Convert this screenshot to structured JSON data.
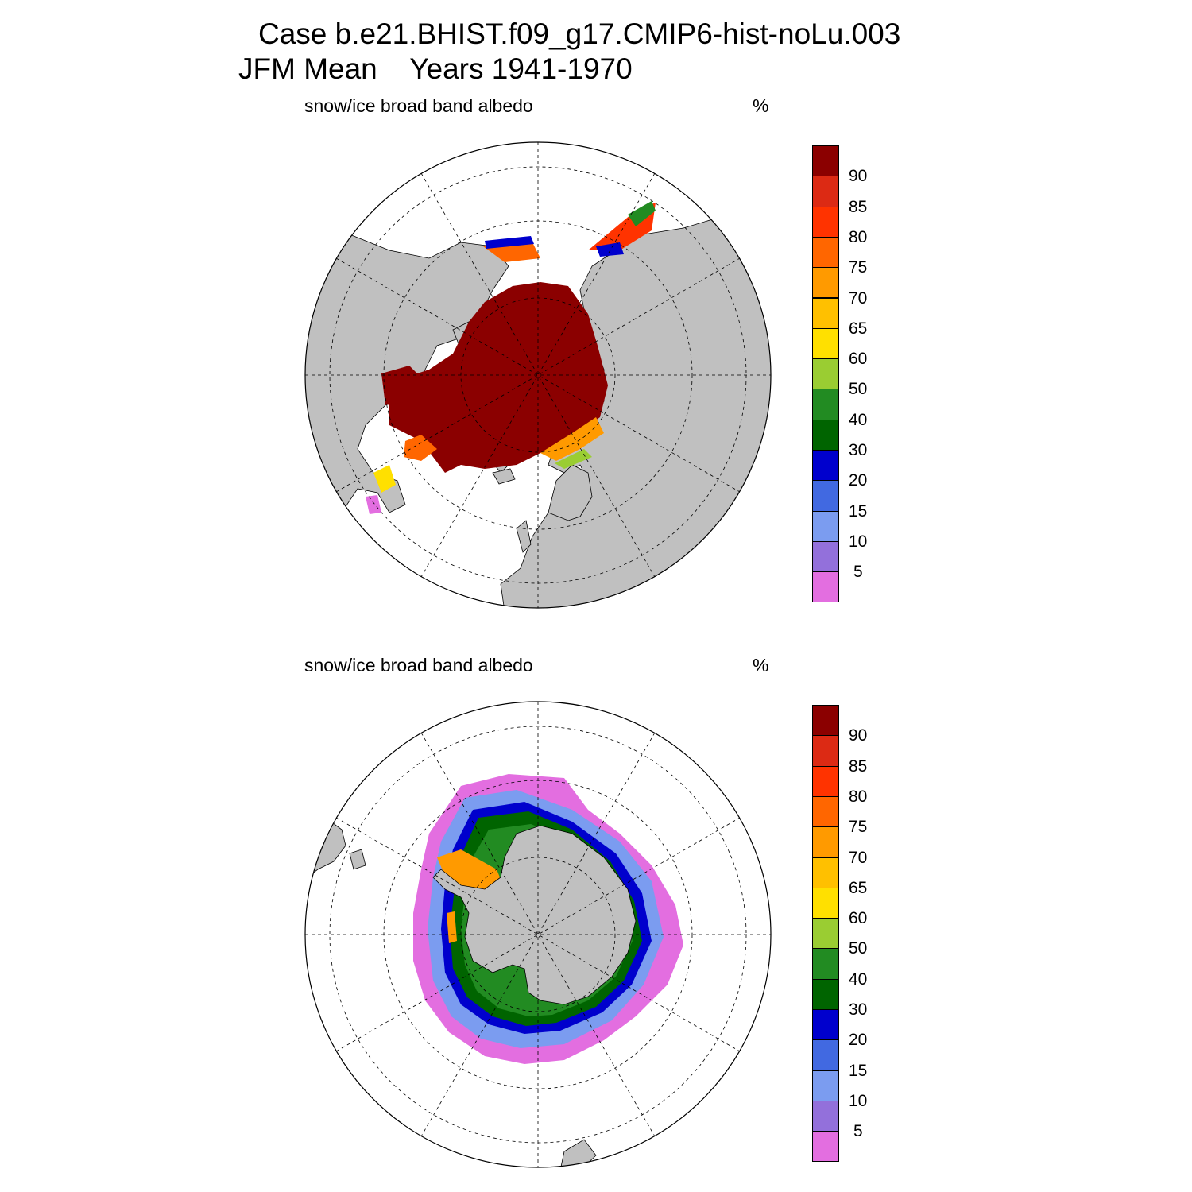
{
  "header": {
    "title_line1": "Case b.e21.BHIST.f09_g17.CMIP6-hist-noLu.003",
    "title_line2": "JFM Mean    Years 1941-1970"
  },
  "panels": [
    {
      "id": "north",
      "variable": "snow/ice broad band albedo",
      "units": "%",
      "hemisphere": "north"
    },
    {
      "id": "south",
      "variable": "snow/ice broad band albedo",
      "units": "%",
      "hemisphere": "south"
    }
  ],
  "colorbar": {
    "levels": [
      "5",
      "10",
      "15",
      "20",
      "30",
      "40",
      "50",
      "60",
      "65",
      "70",
      "75",
      "80",
      "85",
      "90"
    ],
    "colors": [
      "#e36ee0",
      "#9370db",
      "#7b9cf0",
      "#4169e1",
      "#0000cd",
      "#006400",
      "#228b22",
      "#9acd32",
      "#ffe000",
      "#ffc000",
      "#ff9a00",
      "#ff6600",
      "#ff3300",
      "#dc2a14",
      "#8b0000"
    ]
  },
  "map_style": {
    "land": "#c0c0c0",
    "ocean": "#ffffff",
    "grid": "dashed"
  }
}
